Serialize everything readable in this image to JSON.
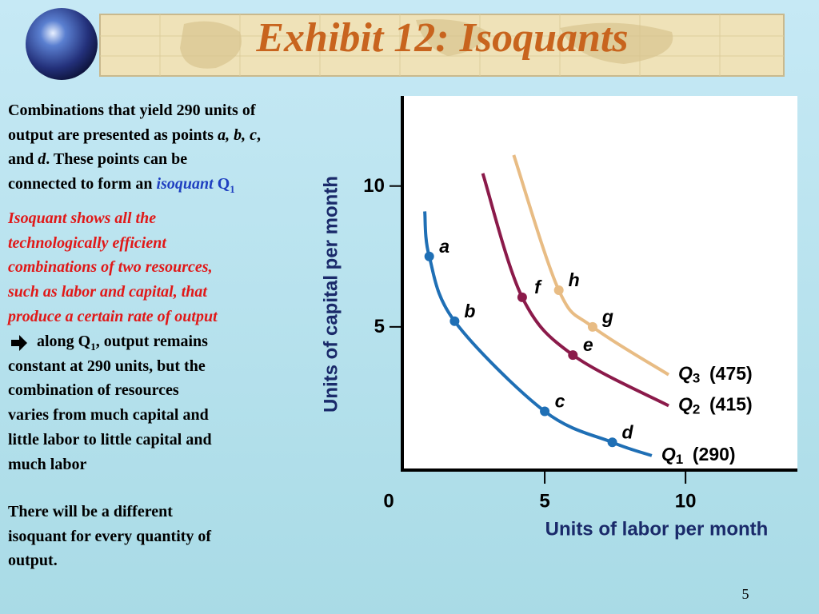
{
  "slide": {
    "title": "Exhibit 12: Isoquants",
    "page_number": "5",
    "intro": [
      "Combinations that yield 290 units of",
      "output are presented as points ",
      "a, b, c",
      ",",
      "and ",
      "d",
      ".  These points can be",
      "connected to form an ",
      "isoquant",
      " Q",
      "1"
    ],
    "definition": [
      "Isoquant shows all the",
      "technologically efficient",
      "combinations of two resources,",
      "such as labor and capital, that",
      "produce a certain rate of output"
    ],
    "along": [
      "along Q",
      "1",
      ", output remains",
      "constant at 290 units, but the",
      "combination of resources",
      "varies from much capital and",
      "little labor to little capital and",
      "much labor"
    ],
    "closing": [
      "There will be a different",
      "isoquant for every quantity of",
      "output."
    ]
  },
  "chart_data": {
    "type": "line",
    "xlabel": "Units of labor per month",
    "ylabel": "Units of capital per month",
    "xlim": [
      0,
      14
    ],
    "ylim": [
      0,
      13
    ],
    "xticks": [
      0,
      5,
      10
    ],
    "yticks": [
      5,
      10
    ],
    "series": [
      {
        "name": "Q1",
        "output": 290,
        "output_label": "(290)",
        "color": "#1f6fb5",
        "x": [
          0.74,
          0.9,
          1.8,
          5,
          7.4,
          8.8
        ],
        "values": [
          9.1,
          7.5,
          5.2,
          2,
          0.9,
          0.43
        ],
        "point_labels": [
          null,
          "a",
          "b",
          "c",
          "d",
          null
        ]
      },
      {
        "name": "Q2",
        "output": 415,
        "output_label": "(415)",
        "color": "#8b1a4a",
        "x": [
          2.8,
          4.2,
          6,
          9.4
        ],
        "values": [
          10.45,
          6.05,
          4,
          2.2
        ],
        "point_labels": [
          null,
          "f",
          "e",
          null
        ]
      },
      {
        "name": "Q3",
        "output": 475,
        "output_label": "(475)",
        "color": "#e8bc84",
        "x": [
          3.9,
          5.5,
          6.7,
          9.4
        ],
        "values": [
          11.1,
          6.3,
          5.0,
          3.3
        ],
        "point_labels": [
          null,
          "h",
          "g",
          null
        ]
      }
    ]
  }
}
